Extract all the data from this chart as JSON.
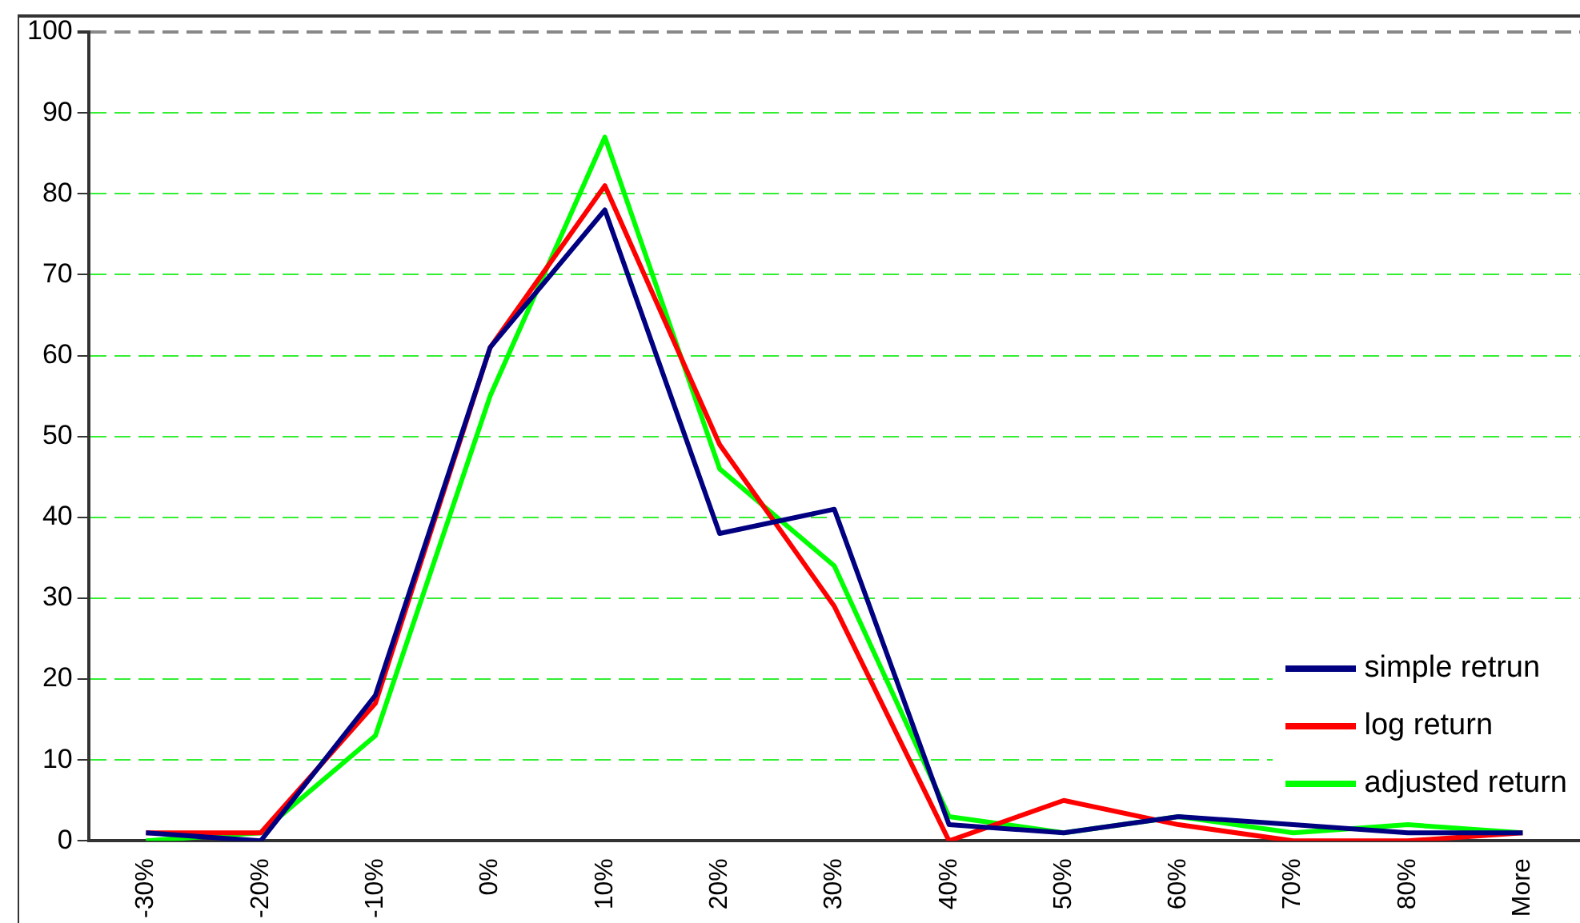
{
  "chart_data": {
    "type": "line",
    "categories": [
      "-30%",
      "-20%",
      "-10%",
      "0%",
      "10%",
      "20%",
      "30%",
      "40%",
      "50%",
      "60%",
      "70%",
      "80%",
      "More"
    ],
    "series": [
      {
        "name": "simple retrun",
        "color": "#000080",
        "values": [
          1,
          0,
          18,
          61,
          78,
          38,
          41,
          2,
          1,
          3,
          2,
          1,
          1
        ]
      },
      {
        "name": "log return",
        "color": "#ff0000",
        "values": [
          1,
          1,
          17,
          61,
          81,
          49,
          29,
          0,
          5,
          2,
          0,
          0,
          1
        ]
      },
      {
        "name": "adjusted return",
        "color": "#00ff00",
        "values": [
          0,
          1,
          13,
          55,
          87,
          46,
          34,
          3,
          1,
          3,
          1,
          2,
          1
        ]
      }
    ],
    "ylim": [
      0,
      100
    ],
    "yticks": [
      0,
      10,
      20,
      30,
      40,
      50,
      60,
      70,
      80,
      90,
      100
    ],
    "grid": "y",
    "legend": "right",
    "marker": "none",
    "line_style": "solid"
  }
}
